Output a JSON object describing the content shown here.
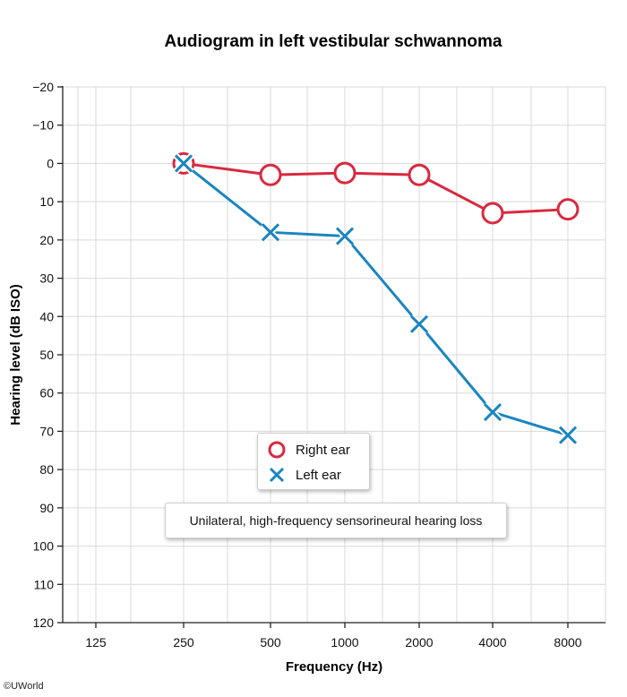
{
  "chart_data": {
    "type": "line",
    "title": "Audiogram in left vestibular schwannoma",
    "xlabel": "Frequency (Hz)",
    "ylabel": "Hearing level (dB ISO)",
    "x_scale": "log2",
    "y_inverted": true,
    "categories": [
      "125",
      "250",
      "500",
      "1000",
      "2000",
      "4000",
      "8000"
    ],
    "yticks": [
      "−20",
      "−10",
      "0",
      "10",
      "20",
      "30",
      "40",
      "50",
      "60",
      "70",
      "80",
      "90",
      "100",
      "110",
      "120"
    ],
    "ylim": [
      -20,
      120
    ],
    "grid": true,
    "legend_position": "bottom-center",
    "series": [
      {
        "name": "Right ear",
        "marker": "circle",
        "color": "#d9293f",
        "x": [
          250,
          500,
          1000,
          2000,
          4000,
          8000
        ],
        "values": [
          0,
          3,
          2.5,
          3,
          13,
          12
        ]
      },
      {
        "name": "Left ear",
        "marker": "x",
        "color": "#1a85bf",
        "x": [
          250,
          500,
          1000,
          2000,
          4000,
          8000
        ],
        "values": [
          0,
          18,
          19,
          42,
          65,
          71
        ]
      }
    ],
    "annotation": "Unilateral, high-frequency sensorineural hearing loss"
  },
  "copyright": "©UWorld"
}
